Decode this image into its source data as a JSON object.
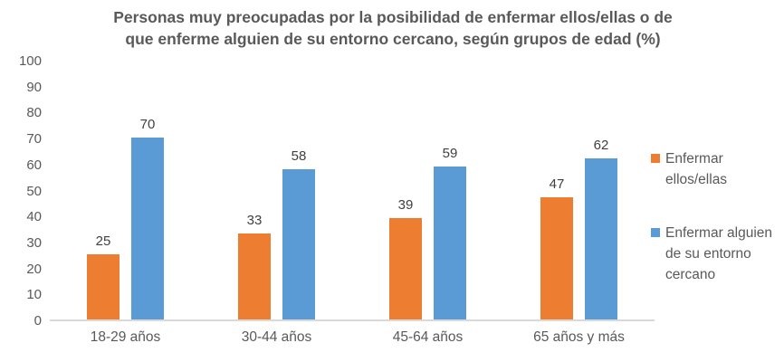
{
  "chart_data": {
    "type": "bar",
    "title": "Personas muy preocupadas por la posibilidad de enfermar ellos/ellas o de que enferme alguien de su entorno cercano, según grupos de edad (%)",
    "title_lines": [
      "Personas muy preocupadas por la posibilidad de enfermar ellos/ellas o de",
      "que enferme alguien de su entorno cercano, según grupos de edad (%)"
    ],
    "categories": [
      "18-29 años",
      "30-44 años",
      "45-64 años",
      "65 años y más"
    ],
    "series": [
      {
        "name": "Enfermar ellos/ellas",
        "color": "#ED7D31",
        "values": [
          25,
          33,
          39,
          47
        ]
      },
      {
        "name": "Enfermar alguien de su entorno cercano",
        "color": "#5B9BD5",
        "values": [
          70,
          58,
          59,
          62
        ]
      }
    ],
    "y_ticks": [
      0,
      10,
      20,
      30,
      40,
      50,
      60,
      70,
      80,
      90,
      100
    ],
    "ylim": [
      0,
      100
    ],
    "xlabel": "",
    "ylabel": "",
    "grid": false,
    "data_labels": true,
    "legend_position": "right"
  },
  "colors": {
    "background": "#FFFFFF",
    "title_text": "#595959",
    "axis_text": "#595959",
    "data_label_text": "#404040",
    "axis_line": "#D9D9D9",
    "series_orange": "#ED7D31",
    "series_blue": "#5B9BD5"
  }
}
